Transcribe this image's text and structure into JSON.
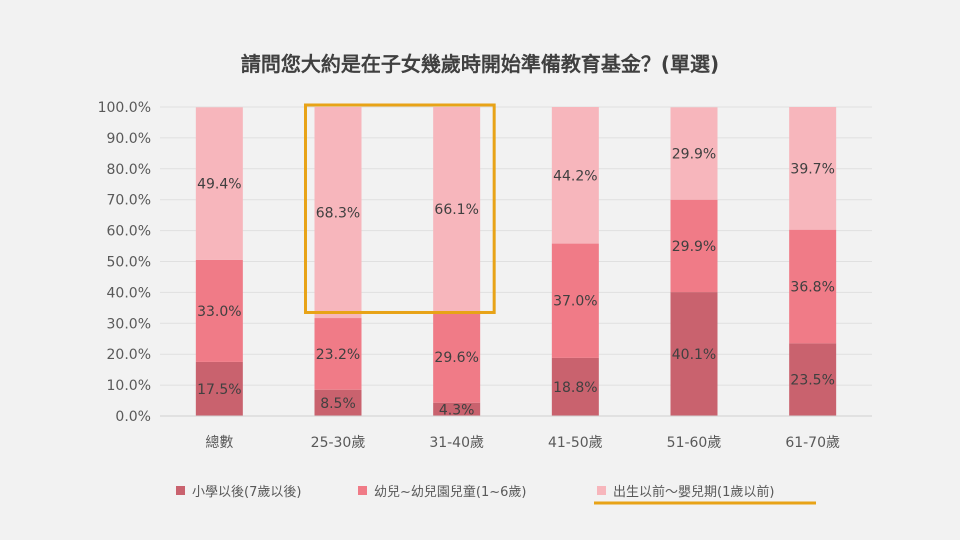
{
  "chart_data": {
    "type": "bar",
    "stacked": true,
    "title": "請問您大約是在子女幾歲時開始準備教育基金？(單選)",
    "categories": [
      "總數",
      "25-30歲",
      "31-40歲",
      "41-50歲",
      "51-60歲",
      "61-70歲"
    ],
    "ylim": [
      0,
      100
    ],
    "yticks": [
      "0.0%",
      "10.0%",
      "20.0%",
      "30.0%",
      "40.0%",
      "50.0%",
      "60.0%",
      "70.0%",
      "80.0%",
      "90.0%",
      "100.0%"
    ],
    "grid": true,
    "legend_position": "bottom",
    "series": [
      {
        "name": "小學以後(7歲以後)",
        "color": "#c9626e",
        "values": [
          17.5,
          8.5,
          4.3,
          18.8,
          40.1,
          23.5
        ],
        "labels": [
          "17.5%",
          "8.5%",
          "4.3%",
          "18.8%",
          "40.1%",
          "23.5%"
        ]
      },
      {
        "name": "幼兒~幼兒園兒童(1~6歲)",
        "color": "#f07b87",
        "values": [
          33.0,
          23.2,
          29.6,
          37.0,
          29.9,
          36.8
        ],
        "labels": [
          "33.0%",
          "23.2%",
          "29.6%",
          "37.0%",
          "29.9%",
          "36.8%"
        ]
      },
      {
        "name": "出生以前～嬰兒期(1歲以前)",
        "color": "#f7b6bc",
        "values": [
          49.4,
          68.3,
          66.1,
          44.2,
          29.9,
          39.7
        ],
        "labels": [
          "49.4%",
          "68.3%",
          "66.1%",
          "44.2%",
          "29.9%",
          "39.7%"
        ]
      }
    ],
    "highlight_color": "#e8a317"
  }
}
